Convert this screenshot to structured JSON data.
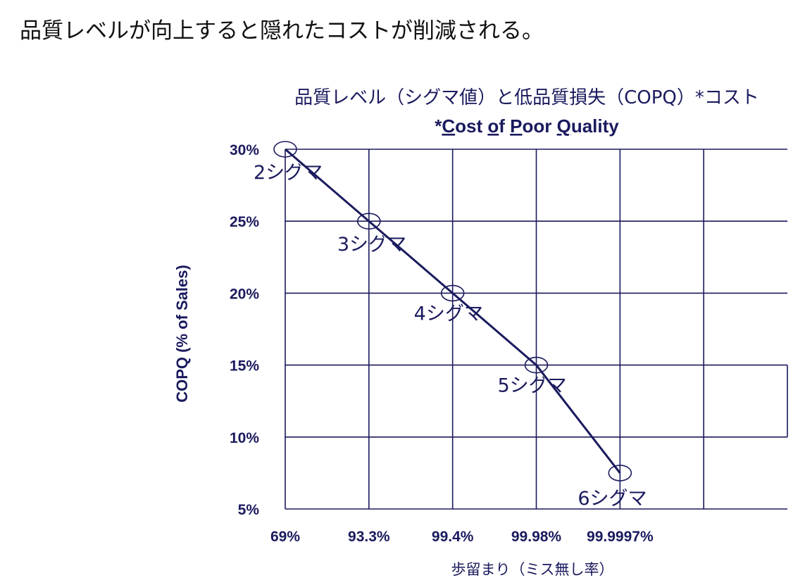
{
  "headline": "品質レベルが向上すると隠れたコストが削減される。",
  "colors": {
    "ink": "#1a1a5e",
    "grid": "#1a1a5e",
    "background": "#ffffff"
  },
  "chart_data": {
    "type": "line",
    "title": "品質レベル（シグマ値）と低品質損失（COPQ）*コスト",
    "subtitle": {
      "prefix": "*",
      "parts": [
        {
          "text": "C",
          "underline": true
        },
        {
          "text": "ost ",
          "underline": false
        },
        {
          "text": "o",
          "underline": true
        },
        {
          "text": "f ",
          "underline": false
        },
        {
          "text": "P",
          "underline": true
        },
        {
          "text": "oor ",
          "underline": false
        },
        {
          "text": "Q",
          "underline": true
        },
        {
          "text": "uality",
          "underline": false
        }
      ]
    },
    "xlabel": "歩留まり（ミス無し率）",
    "ylabel": "COPQ (% of Sales)",
    "x_tick_labels": [
      "69%",
      "93.3%",
      "99.4%",
      "99.98%",
      "99.9997%"
    ],
    "y_tick_labels": [
      "5%",
      "10%",
      "15%",
      "20%",
      "25%",
      "30%"
    ],
    "ylim": [
      5,
      30
    ],
    "grid": true,
    "series": [
      {
        "points": [
          {
            "x": "69%",
            "y": 30,
            "label": "2シグマ"
          },
          {
            "x": "93.3%",
            "y": 25,
            "label": "3シグマ"
          },
          {
            "x": "99.4%",
            "y": 20,
            "label": "4シグマ"
          },
          {
            "x": "99.98%",
            "y": 15,
            "label": "5シグマ"
          },
          {
            "x": "99.9997%",
            "y": 7.5,
            "label": "6シグマ"
          }
        ]
      }
    ]
  }
}
